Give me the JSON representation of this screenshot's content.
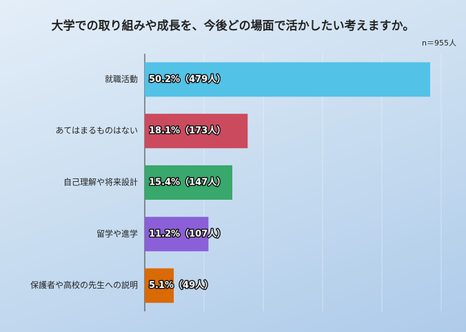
{
  "chart_data": {
    "type": "bar",
    "orientation": "horizontal",
    "title": "大学での取り組みや成長を、今後どの場面で活かしたい考えますか。",
    "annotation": "n＝955人",
    "categories": [
      "就職活動",
      "あてはまるものはない",
      "自己理解や将来設計",
      "留学や進学",
      "保護者や高校の先生への説明"
    ],
    "values": [
      50.2,
      18.1,
      15.4,
      11.2,
      5.1
    ],
    "value_labels": [
      "50.2%（479人）",
      "18.1%（173人）",
      "15.4%（147人）",
      "11.2%（107人）",
      "5.1%（49人）"
    ],
    "colors": [
      "#52c2e6",
      "#cc4a5d",
      "#38a86c",
      "#8b5fd8",
      "#d96a06"
    ]
  }
}
